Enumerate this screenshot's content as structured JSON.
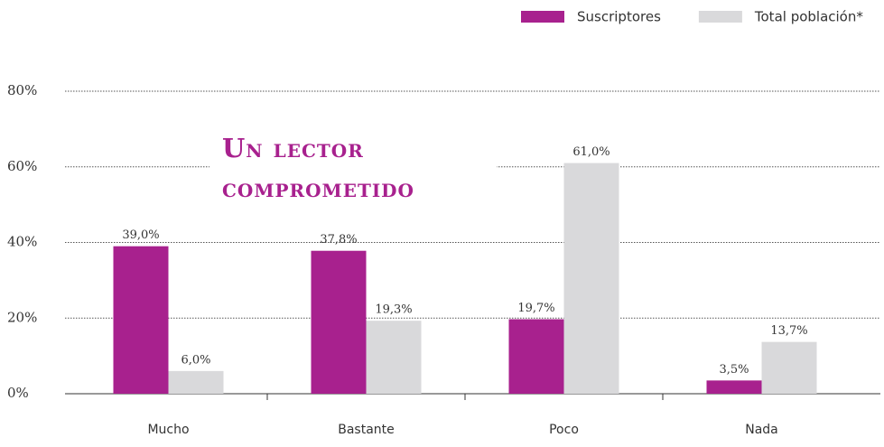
{
  "chart_data": {
    "type": "bar",
    "title": "Un lector comprometido",
    "categories": [
      "Mucho",
      "Bastante",
      "Poco",
      "Nada"
    ],
    "series": [
      {
        "name": "Suscriptores",
        "color": "#a8218e",
        "values": [
          39.0,
          37.8,
          19.7,
          3.5
        ],
        "value_labels": [
          "39,0%",
          "37,8%",
          "19,7%",
          "3,5%"
        ]
      },
      {
        "name": "Total población*",
        "color": "#d9d9db",
        "values": [
          6.0,
          19.3,
          61.0,
          13.7
        ],
        "value_labels": [
          "6,0%",
          "19,3%",
          "61,0%",
          "13,7%"
        ]
      }
    ],
    "ylim": [
      0,
      80
    ],
    "yticks": [
      {
        "value": 0,
        "label": "0%"
      },
      {
        "value": 20,
        "label": "20%"
      },
      {
        "value": 40,
        "label": "40%"
      },
      {
        "value": 60,
        "label": "60%"
      },
      {
        "value": 80,
        "label": "80%"
      }
    ],
    "grid": true,
    "legend": "top-right"
  }
}
